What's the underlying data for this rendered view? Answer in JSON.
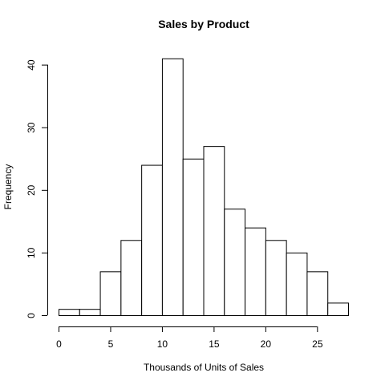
{
  "chart_data": {
    "type": "bar",
    "subtype": "histogram",
    "title": "Sales by Product",
    "xlabel": "Thousands of Units of Sales",
    "ylabel": "Frequency",
    "bin_edges": [
      0,
      2,
      4,
      6,
      8,
      10,
      12,
      14,
      16,
      18,
      20,
      22,
      24,
      26,
      28
    ],
    "values": [
      1,
      1,
      7,
      12,
      24,
      41,
      25,
      27,
      17,
      14,
      12,
      10,
      7,
      2
    ],
    "xlim": [
      0,
      28
    ],
    "ylim": [
      0,
      42
    ],
    "x_ticks": [
      0,
      5,
      10,
      15,
      20,
      25
    ],
    "y_ticks": [
      0,
      10,
      20,
      30,
      40
    ],
    "grid": false,
    "legend": "none",
    "colors": {
      "bar_fill": "#ffffff",
      "bar_stroke": "#000000",
      "axis": "#000000"
    }
  }
}
